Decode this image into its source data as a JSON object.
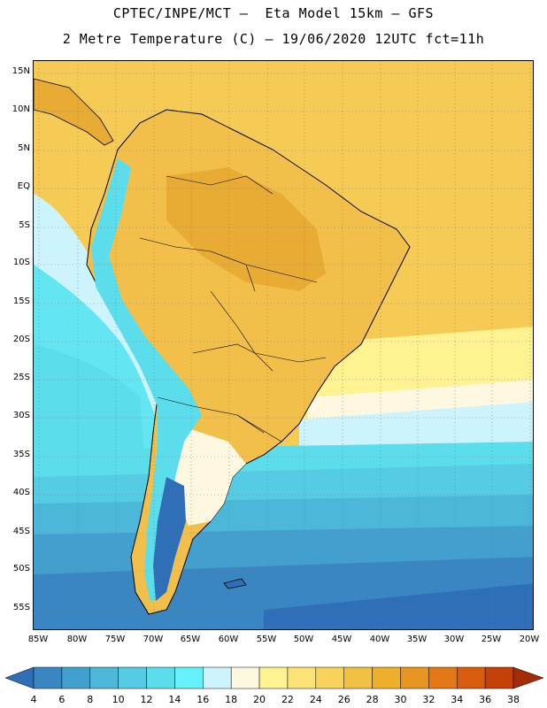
{
  "header": {
    "line1": "CPTEC/INPE/MCT –  Eta Model 15km – GFS",
    "line2": "2 Metre Temperature (C) – 19/06/2020 12UTC fct=11h"
  },
  "map": {
    "lat_labels": [
      "15N",
      "10N",
      "5N",
      "EQ",
      "5S",
      "10S",
      "15S",
      "20S",
      "25S",
      "30S",
      "35S",
      "40S",
      "45S",
      "50S",
      "55S"
    ],
    "lon_labels": [
      "85W",
      "80W",
      "75W",
      "70W",
      "65W",
      "60W",
      "55W",
      "50W",
      "45W",
      "40W",
      "35W",
      "30W",
      "25W",
      "20W"
    ],
    "land_color": "#F2C04A",
    "land_hot_color": "#E8AC35",
    "ocean_warm_color": "#F5CB55",
    "ocean_cool_color": "#63E6F2",
    "ocean_cold_color": "#2F6FB8",
    "grid_style": "dotted"
  },
  "colorbar": {
    "labels": [
      "4",
      "6",
      "8",
      "10",
      "12",
      "14",
      "16",
      "18",
      "20",
      "22",
      "24",
      "26",
      "28",
      "30",
      "32",
      "34",
      "36",
      "38"
    ],
    "colors": [
      "#2F6FB8",
      "#3A86C3",
      "#43A0CE",
      "#4CB7D9",
      "#55CCE3",
      "#5CDDEB",
      "#66F1FA",
      "#CDF4FD",
      "#FFF8E0",
      "#FEF291",
      "#FCE375",
      "#F7D35B",
      "#F1C144",
      "#EDAF2C",
      "#E89420",
      "#E27715",
      "#D75C0E",
      "#C4410A",
      "#A32C06"
    ]
  }
}
